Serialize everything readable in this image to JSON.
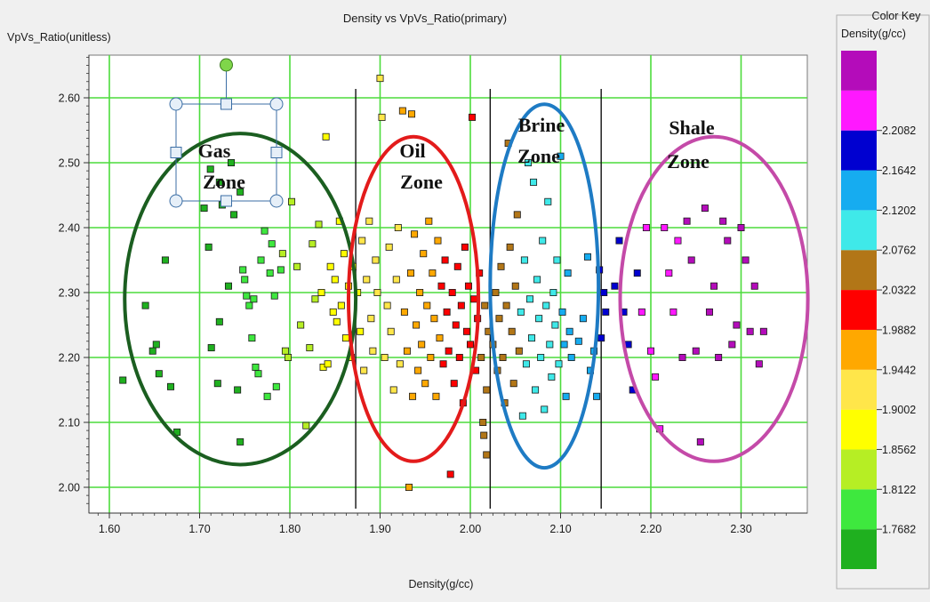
{
  "chart_data": {
    "type": "scatter",
    "title": "Density vs VpVs_Ratio(primary)",
    "xlabel": "Density(g/cc)",
    "ylabel": "VpVs_Ratio(unitless)",
    "xlim": [
      1.575,
      2.355
    ],
    "ylim": [
      1.975,
      2.665
    ],
    "xticks": [
      "1.60",
      "1.70",
      "1.80",
      "1.90",
      "2.00",
      "2.10",
      "2.20",
      "2.30"
    ],
    "yticks": [
      "2.00",
      "2.10",
      "2.20",
      "2.30",
      "2.40",
      "2.50",
      "2.60"
    ],
    "grid": true,
    "grid_color": "#4cdc3c",
    "color_key": {
      "title": "Color Key",
      "subtitle": "Density(g/cc)",
      "colors": [
        "#1fb01f",
        "#3ee83e",
        "#b6ee24",
        "#ffff00",
        "#ffe64a",
        "#ffa800",
        "#ff0000",
        "#b27617",
        "#3fe9e9",
        "#16acf0",
        "#0000d0",
        "#ff18ff",
        "#b40cba"
      ],
      "tick_labels": [
        "1.7682",
        "1.8122",
        "1.8562",
        "1.9002",
        "1.9442",
        "1.9882",
        "2.0322",
        "2.0762",
        "2.1202",
        "2.1642",
        "2.2082"
      ]
    },
    "zone_boundaries_x": [
      1.873,
      2.022,
      2.145
    ],
    "zones": [
      {
        "label_line1": "Gas",
        "label_line2": "Zone",
        "color": "#1b5e20",
        "center": [
          1.745,
          2.29
        ],
        "radius": [
          0.128,
          0.255
        ]
      },
      {
        "label_line1": "Oil",
        "label_line2": "Zone",
        "color": "#e31b1b",
        "center": [
          1.937,
          2.29
        ],
        "radius": [
          0.072,
          0.25
        ]
      },
      {
        "label_line1": "Brine",
        "label_line2": "Zone",
        "color": "#1e7bc4",
        "center": [
          2.082,
          2.31
        ],
        "radius": [
          0.06,
          0.28
        ]
      },
      {
        "label_line1": "Shale",
        "label_line2": "Zone",
        "color": "#c44aa8",
        "center": [
          2.27,
          2.29
        ],
        "radius": [
          0.104,
          0.25
        ]
      }
    ],
    "points": [
      [
        1.615,
        2.165
      ],
      [
        1.64,
        2.28
      ],
      [
        1.648,
        2.21
      ],
      [
        1.652,
        2.22
      ],
      [
        1.655,
        2.175
      ],
      [
        1.662,
        2.35
      ],
      [
        1.668,
        2.155
      ],
      [
        1.675,
        2.085
      ],
      [
        1.705,
        2.43
      ],
      [
        1.71,
        2.37
      ],
      [
        1.713,
        2.215
      ],
      [
        1.72,
        2.16
      ],
      [
        1.722,
        2.255
      ],
      [
        1.732,
        2.31
      ],
      [
        1.738,
        2.42
      ],
      [
        1.742,
        2.15
      ],
      [
        1.745,
        2.07
      ],
      [
        1.748,
        2.335
      ],
      [
        1.75,
        2.32
      ],
      [
        1.752,
        2.295
      ],
      [
        1.755,
        2.28
      ],
      [
        1.758,
        2.23
      ],
      [
        1.76,
        2.29
      ],
      [
        1.762,
        2.185
      ],
      [
        1.765,
        2.175
      ],
      [
        1.768,
        2.35
      ],
      [
        1.772,
        2.395
      ],
      [
        1.775,
        2.14
      ],
      [
        1.778,
        2.33
      ],
      [
        1.78,
        2.375
      ],
      [
        1.783,
        2.295
      ],
      [
        1.785,
        2.155
      ],
      [
        1.79,
        2.335
      ],
      [
        1.792,
        2.36
      ],
      [
        1.795,
        2.21
      ],
      [
        1.798,
        2.2
      ],
      [
        1.802,
        2.44
      ],
      [
        1.808,
        2.34
      ],
      [
        1.812,
        2.25
      ],
      [
        1.818,
        2.095
      ],
      [
        1.822,
        2.215
      ],
      [
        1.825,
        2.375
      ],
      [
        1.828,
        2.29
      ],
      [
        1.832,
        2.405
      ],
      [
        1.835,
        2.3
      ],
      [
        1.837,
        2.185
      ],
      [
        1.84,
        2.54
      ],
      [
        1.842,
        2.19
      ],
      [
        1.845,
        2.34
      ],
      [
        1.848,
        2.27
      ],
      [
        1.85,
        2.32
      ],
      [
        1.852,
        2.255
      ],
      [
        1.855,
        2.41
      ],
      [
        1.857,
        2.28
      ],
      [
        1.86,
        2.36
      ],
      [
        1.862,
        2.23
      ],
      [
        1.865,
        2.31
      ],
      [
        1.868,
        2.2
      ],
      [
        1.87,
        2.34
      ],
      [
        1.712,
        2.49
      ],
      [
        1.722,
        2.47
      ],
      [
        1.735,
        2.5
      ],
      [
        1.745,
        2.455
      ],
      [
        1.725,
        2.435
      ],
      [
        1.875,
        2.3
      ],
      [
        1.878,
        2.24
      ],
      [
        1.88,
        2.38
      ],
      [
        1.882,
        2.18
      ],
      [
        1.885,
        2.32
      ],
      [
        1.888,
        2.41
      ],
      [
        1.89,
        2.26
      ],
      [
        1.892,
        2.21
      ],
      [
        1.895,
        2.35
      ],
      [
        1.897,
        2.3
      ],
      [
        1.9,
        2.63
      ],
      [
        1.902,
        2.57
      ],
      [
        1.905,
        2.2
      ],
      [
        1.908,
        2.28
      ],
      [
        1.91,
        2.37
      ],
      [
        1.912,
        2.24
      ],
      [
        1.915,
        2.15
      ],
      [
        1.918,
        2.32
      ],
      [
        1.92,
        2.4
      ],
      [
        1.922,
        2.19
      ],
      [
        1.925,
        2.58
      ],
      [
        1.927,
        2.27
      ],
      [
        1.93,
        2.21
      ],
      [
        1.932,
        2.0
      ],
      [
        1.934,
        2.33
      ],
      [
        1.936,
        2.14
      ],
      [
        1.938,
        2.39
      ],
      [
        1.94,
        2.25
      ],
      [
        1.942,
        2.18
      ],
      [
        1.944,
        2.3
      ],
      [
        1.946,
        2.22
      ],
      [
        1.948,
        2.36
      ],
      [
        1.95,
        2.16
      ],
      [
        1.952,
        2.28
      ],
      [
        1.954,
        2.41
      ],
      [
        1.956,
        2.2
      ],
      [
        1.958,
        2.33
      ],
      [
        1.96,
        2.26
      ],
      [
        1.962,
        2.14
      ],
      [
        1.964,
        2.38
      ],
      [
        1.966,
        2.23
      ],
      [
        1.968,
        2.31
      ],
      [
        1.97,
        2.19
      ],
      [
        1.972,
        2.35
      ],
      [
        1.974,
        2.27
      ],
      [
        1.976,
        2.21
      ],
      [
        1.978,
        2.02
      ],
      [
        1.98,
        2.3
      ],
      [
        1.982,
        2.16
      ],
      [
        1.984,
        2.25
      ],
      [
        1.986,
        2.34
      ],
      [
        1.988,
        2.2
      ],
      [
        1.99,
        2.28
      ],
      [
        1.992,
        2.13
      ],
      [
        1.994,
        2.37
      ],
      [
        1.996,
        2.24
      ],
      [
        1.998,
        2.31
      ],
      [
        2.0,
        2.22
      ],
      [
        2.002,
        2.57
      ],
      [
        2.004,
        2.29
      ],
      [
        2.006,
        2.18
      ],
      [
        2.008,
        2.26
      ],
      [
        2.01,
        2.33
      ],
      [
        2.012,
        2.2
      ],
      [
        2.014,
        2.1
      ],
      [
        2.016,
        2.28
      ],
      [
        2.018,
        2.15
      ],
      [
        2.02,
        2.24
      ],
      [
        1.935,
        2.575
      ],
      [
        2.015,
        2.08
      ],
      [
        2.018,
        2.05
      ],
      [
        2.025,
        2.22
      ],
      [
        2.028,
        2.3
      ],
      [
        2.03,
        2.18
      ],
      [
        2.032,
        2.26
      ],
      [
        2.034,
        2.34
      ],
      [
        2.036,
        2.2
      ],
      [
        2.038,
        2.13
      ],
      [
        2.04,
        2.28
      ],
      [
        2.042,
        2.53
      ],
      [
        2.044,
        2.37
      ],
      [
        2.046,
        2.24
      ],
      [
        2.048,
        2.16
      ],
      [
        2.05,
        2.31
      ],
      [
        2.052,
        2.42
      ],
      [
        2.054,
        2.21
      ],
      [
        2.056,
        2.27
      ],
      [
        2.058,
        2.11
      ],
      [
        2.06,
        2.35
      ],
      [
        2.062,
        2.19
      ],
      [
        2.064,
        2.5
      ],
      [
        2.066,
        2.29
      ],
      [
        2.068,
        2.23
      ],
      [
        2.07,
        2.47
      ],
      [
        2.072,
        2.15
      ],
      [
        2.074,
        2.32
      ],
      [
        2.076,
        2.26
      ],
      [
        2.078,
        2.2
      ],
      [
        2.08,
        2.38
      ],
      [
        2.082,
        2.12
      ],
      [
        2.084,
        2.28
      ],
      [
        2.086,
        2.44
      ],
      [
        2.088,
        2.22
      ],
      [
        2.09,
        2.17
      ],
      [
        2.092,
        2.3
      ],
      [
        2.094,
        2.25
      ],
      [
        2.096,
        2.35
      ],
      [
        2.098,
        2.19
      ],
      [
        2.1,
        2.51
      ],
      [
        2.102,
        2.27
      ],
      [
        2.104,
        2.22
      ],
      [
        2.106,
        2.14
      ],
      [
        2.108,
        2.33
      ],
      [
        2.11,
        2.24
      ],
      [
        2.112,
        2.2
      ],
      [
        2.12,
        2.225
      ],
      [
        2.125,
        2.26
      ],
      [
        2.13,
        2.355
      ],
      [
        2.133,
        2.18
      ],
      [
        2.137,
        2.21
      ],
      [
        2.14,
        2.14
      ],
      [
        2.143,
        2.335
      ],
      [
        2.145,
        2.23
      ],
      [
        2.148,
        2.3
      ],
      [
        2.15,
        2.27
      ],
      [
        2.16,
        2.31
      ],
      [
        2.165,
        2.38
      ],
      [
        2.17,
        2.27
      ],
      [
        2.175,
        2.22
      ],
      [
        2.18,
        2.15
      ],
      [
        2.185,
        2.33
      ],
      [
        2.19,
        2.27
      ],
      [
        2.195,
        2.4
      ],
      [
        2.2,
        2.21
      ],
      [
        2.205,
        2.17
      ],
      [
        2.21,
        2.09
      ],
      [
        2.215,
        2.4
      ],
      [
        2.22,
        2.33
      ],
      [
        2.225,
        2.27
      ],
      [
        2.23,
        2.38
      ],
      [
        2.235,
        2.2
      ],
      [
        2.24,
        2.41
      ],
      [
        2.245,
        2.35
      ],
      [
        2.25,
        2.21
      ],
      [
        2.255,
        2.07
      ],
      [
        2.26,
        2.43
      ],
      [
        2.265,
        2.27
      ],
      [
        2.27,
        2.31
      ],
      [
        2.275,
        2.2
      ],
      [
        2.28,
        2.41
      ],
      [
        2.285,
        2.38
      ],
      [
        2.29,
        2.22
      ],
      [
        2.295,
        2.25
      ],
      [
        2.3,
        2.4
      ],
      [
        2.305,
        2.35
      ],
      [
        2.31,
        2.24
      ],
      [
        2.315,
        2.31
      ],
      [
        2.32,
        2.19
      ],
      [
        2.325,
        2.24
      ]
    ]
  }
}
